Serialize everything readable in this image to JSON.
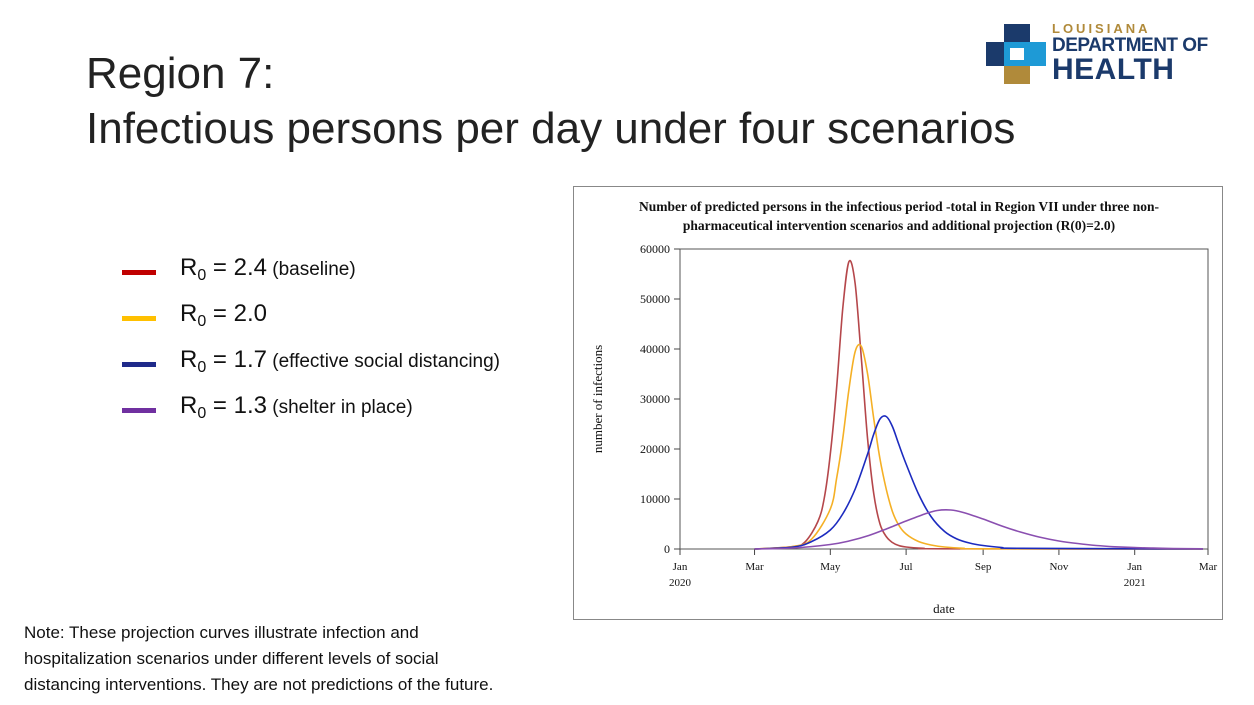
{
  "slide": {
    "title_line1": "Region 7:",
    "title_line2": "Infectious persons per day under four scenarios"
  },
  "logo": {
    "small": "LOUISIANA",
    "line1": "DEPARTMENT OF",
    "line2": "HEALTH",
    "colors": {
      "blue": "#1b3a6b",
      "cyan": "#1e9ad6",
      "gold": "#b08a3a"
    }
  },
  "legend": [
    {
      "symbol": "R",
      "sub": "0",
      "value": " = 2.4",
      "desc": " (baseline)",
      "color": "#c00000"
    },
    {
      "symbol": "R",
      "sub": "0",
      "value": " = 2.0",
      "desc": "",
      "color": "#ffc000"
    },
    {
      "symbol": "R",
      "sub": "0",
      "value": " = 1.7",
      "desc": " (effective social distancing)",
      "color": "#1f2a8a"
    },
    {
      "symbol": "R",
      "sub": "0",
      "value": " = 1.3",
      "desc": " (shelter in place)",
      "color": "#7030a0"
    }
  ],
  "note": {
    "line1": "Note: These projection curves illustrate infection and",
    "line2": "hospitalization scenarios under different levels of social",
    "line3": "distancing interventions. They are not predictions of the future."
  },
  "chart_data": {
    "type": "line",
    "title_line1": "Number of predicted persons in the infectious period -total in Region VII under three non-",
    "title_line2": "pharmaceutical intervention scenarios and additional projection (R(0)=2.0)",
    "xlabel": "date",
    "ylabel": "number of infections",
    "xlim": [
      "2020-01-01",
      "2021-03-01"
    ],
    "ylim": [
      0,
      60000
    ],
    "yticks": [
      0,
      10000,
      20000,
      30000,
      40000,
      50000,
      60000
    ],
    "xticks": [
      {
        "date": "2020-01-01",
        "label": "Jan",
        "year": "2020"
      },
      {
        "date": "2020-03-01",
        "label": "Mar",
        "year": ""
      },
      {
        "date": "2020-05-01",
        "label": "May",
        "year": ""
      },
      {
        "date": "2020-07-01",
        "label": "Jul",
        "year": ""
      },
      {
        "date": "2020-09-01",
        "label": "Sep",
        "year": ""
      },
      {
        "date": "2020-11-01",
        "label": "Nov",
        "year": ""
      },
      {
        "date": "2021-01-01",
        "label": "Jan",
        "year": "2021"
      },
      {
        "date": "2021-03-01",
        "label": "Mar",
        "year": ""
      }
    ],
    "grid": false,
    "series": [
      {
        "color": "#b5474b",
        "x": [
          "2020-03-01",
          "2020-04-01",
          "2020-04-11",
          "2020-04-21",
          "2020-04-26",
          "2020-05-01",
          "2020-05-06",
          "2020-05-11",
          "2020-05-16",
          "2020-05-21",
          "2020-05-26",
          "2020-05-31",
          "2020-06-05",
          "2020-06-10",
          "2020-06-15",
          "2020-06-20",
          "2020-06-25",
          "2020-07-01",
          "2020-07-15",
          "2020-08-01",
          "2021-02-25"
        ],
        "y": [
          0,
          500,
          1500,
          5500,
          10000,
          19000,
          32000,
          48000,
          57500,
          53000,
          38000,
          22000,
          11000,
          5000,
          2500,
          1300,
          700,
          400,
          150,
          50,
          0
        ]
      },
      {
        "color": "#f5b025",
        "x": [
          "2020-03-01",
          "2020-04-01",
          "2020-04-16",
          "2020-05-01",
          "2020-05-06",
          "2020-05-11",
          "2020-05-16",
          "2020-05-21",
          "2020-05-26",
          "2020-05-31",
          "2020-06-05",
          "2020-06-10",
          "2020-06-15",
          "2020-06-20",
          "2020-06-25",
          "2020-07-01",
          "2020-07-11",
          "2020-07-21",
          "2020-08-01",
          "2020-08-16",
          "2020-09-01",
          "2021-02-25"
        ],
        "y": [
          0,
          500,
          2000,
          8000,
          14000,
          22000,
          32000,
          39500,
          40500,
          35000,
          26000,
          18000,
          12000,
          7500,
          4800,
          3000,
          1500,
          800,
          400,
          150,
          50,
          0
        ]
      },
      {
        "color": "#1c2bbf",
        "x": [
          "2020-03-01",
          "2020-04-01",
          "2020-04-16",
          "2020-05-01",
          "2020-05-11",
          "2020-05-21",
          "2020-05-31",
          "2020-06-05",
          "2020-06-10",
          "2020-06-15",
          "2020-06-20",
          "2020-06-25",
          "2020-07-01",
          "2020-07-11",
          "2020-07-21",
          "2020-08-01",
          "2020-08-11",
          "2020-08-21",
          "2020-09-01",
          "2020-09-16",
          "2020-10-01",
          "2021-02-25"
        ],
        "y": [
          0,
          400,
          1500,
          3800,
          7000,
          12000,
          19000,
          23000,
          26000,
          26500,
          24500,
          21000,
          17000,
          11000,
          6500,
          3500,
          2000,
          1200,
          700,
          300,
          150,
          0
        ]
      },
      {
        "color": "#8a4fb0",
        "x": [
          "2020-03-01",
          "2020-04-01",
          "2020-05-01",
          "2020-05-16",
          "2020-06-01",
          "2020-06-16",
          "2020-07-01",
          "2020-07-16",
          "2020-07-26",
          "2020-08-06",
          "2020-08-16",
          "2020-09-01",
          "2020-09-16",
          "2020-10-01",
          "2020-10-16",
          "2020-11-01",
          "2020-11-16",
          "2020-12-01",
          "2020-12-16",
          "2021-01-01",
          "2021-01-16",
          "2021-02-01",
          "2021-02-25"
        ],
        "y": [
          0,
          200,
          900,
          1600,
          2700,
          4100,
          5600,
          7000,
          7700,
          7800,
          7300,
          6000,
          4600,
          3400,
          2400,
          1600,
          1100,
          700,
          450,
          280,
          170,
          100,
          50
        ]
      }
    ]
  }
}
